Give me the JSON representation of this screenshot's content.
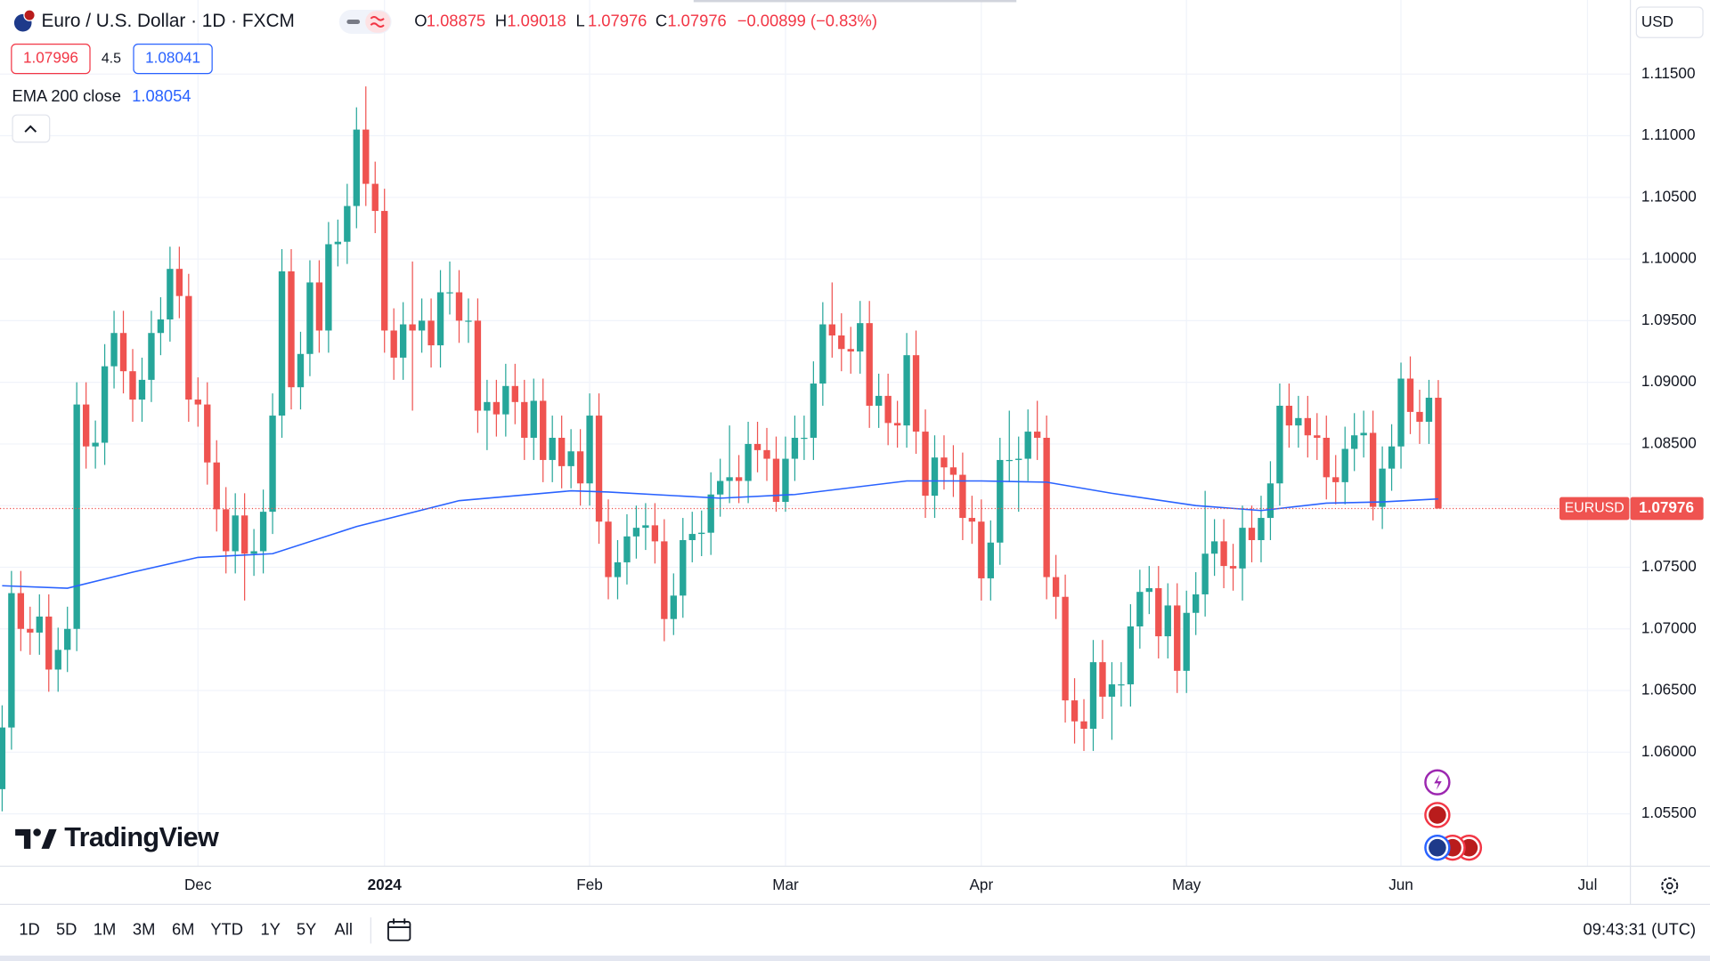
{
  "header": {
    "symbol": "Euro / U.S. Dollar · 1D · FXCM",
    "ohlc_labels": [
      "O",
      "H",
      "L",
      "C"
    ],
    "change": "−0.00899 (−0.83%)",
    "bid": 1.07996,
    "spread": 4.5,
    "ask": 1.08041,
    "currency": "USD",
    "symbol_tag": "EURUSD",
    "logo": "TradingView"
  },
  "toolbar": {
    "timeframes": [
      "1D",
      "5D",
      "1M",
      "3M",
      "6M",
      "YTD",
      "1Y",
      "5Y",
      "All"
    ],
    "clock": "09:43:31 (UTC)"
  },
  "chart_data": {
    "type": "candlestick",
    "up_color": "#26a69a",
    "down_color": "#ef5350",
    "grid": true,
    "xlim": [
      -0.23,
      174.6
    ],
    "xticks": [
      {
        "value": 21,
        "label": "Dec"
      },
      {
        "value": 41,
        "label": "2024"
      },
      {
        "value": 63,
        "label": "Feb"
      },
      {
        "value": 84,
        "label": "Mar"
      },
      {
        "value": 105,
        "label": "Apr"
      },
      {
        "value": 127,
        "label": "May"
      },
      {
        "value": 150,
        "label": "Jun"
      },
      {
        "value": 170,
        "label": "Jul"
      }
    ],
    "ylim": [
      1.05075,
      1.12101
    ],
    "yticks": [
      {
        "value": 1.055,
        "label": "1.05500"
      },
      {
        "value": 1.06,
        "label": "1.06000"
      },
      {
        "value": 1.065,
        "label": "1.06500"
      },
      {
        "value": 1.07,
        "label": "1.07000"
      },
      {
        "value": 1.075,
        "label": "1.07500"
      },
      {
        "value": 1.08,
        "label": "1.08000"
      },
      {
        "value": 1.085,
        "label": "1.08500"
      },
      {
        "value": 1.09,
        "label": "1.09000"
      },
      {
        "value": 1.095,
        "label": "1.09500"
      },
      {
        "value": 1.1,
        "label": "1.10000"
      },
      {
        "value": 1.105,
        "label": "1.10500"
      },
      {
        "value": 1.11,
        "label": "1.11000"
      },
      {
        "value": 1.115,
        "label": "1.11500"
      }
    ],
    "open": [
      1.057,
      1.062,
      1.0729,
      1.07,
      1.0697,
      1.071,
      1.0667,
      1.0683,
      1.07,
      1.0882,
      1.0848,
      1.0851,
      1.0913,
      1.094,
      1.0909,
      1.0886,
      1.0902,
      1.094,
      1.0951,
      1.0992,
      1.097,
      1.0886,
      1.0882,
      1.0835,
      1.0797,
      1.0763,
      1.0792,
      1.0761,
      1.0763,
      1.0795,
      1.0873,
      1.099,
      1.0896,
      1.0923,
      1.0981,
      1.0942,
      1.1012,
      1.1014,
      1.1043,
      1.1105,
      1.1061,
      1.1039,
      1.0942,
      1.092,
      1.0947,
      1.0942,
      1.095,
      1.093,
      1.0973,
      1.0973,
      1.095,
      1.095,
      1.0877,
      1.0884,
      1.0874,
      1.0897,
      1.0884,
      1.0855,
      1.0885,
      1.0837,
      1.0855,
      1.0832,
      1.0844,
      1.0818,
      1.0873,
      1.0787,
      1.0742,
      1.0754,
      1.0775,
      1.0782,
      1.0784,
      1.0771,
      1.0708,
      1.0727,
      1.0772,
      1.0777,
      1.0778,
      1.0809,
      1.082,
      1.0823,
      1.082,
      1.085,
      1.0845,
      1.0838,
      1.0803,
      1.0838,
      1.0855,
      1.0855,
      1.0899,
      1.0947,
      1.0938,
      1.0927,
      1.0925,
      1.0948,
      1.0881,
      1.0889,
      1.0867,
      1.0865,
      1.0922,
      1.086,
      1.0808,
      1.0839,
      1.0831,
      1.0825,
      1.079,
      1.0787,
      1.0741,
      1.077,
      1.0837,
      1.0837,
      1.0838,
      1.086,
      1.0855,
      1.0742,
      1.0726,
      1.0642,
      1.0625,
      1.0619,
      1.0673,
      1.0645,
      1.0655,
      1.0655,
      1.0702,
      1.073,
      1.0733,
      1.0694,
      1.0719,
      1.0666,
      1.0713,
      1.0728,
      1.0761,
      1.0771,
      1.0751,
      1.0749,
      1.0782,
      1.0772,
      1.079,
      1.0818,
      1.0881,
      1.0865,
      1.0871,
      1.0857,
      1.0855,
      1.0823,
      1.0819,
      1.0846,
      1.0857,
      1.0859,
      1.0799,
      1.083,
      1.0848,
      1.0903,
      1.0876,
      1.0868,
      1.08875
    ],
    "high": [
      1.0638,
      1.0747,
      1.0747,
      1.0718,
      1.0728,
      1.0728,
      1.0701,
      1.0718,
      1.09,
      1.09,
      1.0869,
      1.0931,
      1.0958,
      1.0958,
      1.0927,
      1.092,
      1.0958,
      1.0969,
      1.101,
      1.101,
      1.0988,
      1.0904,
      1.09,
      1.0853,
      1.0815,
      1.081,
      1.081,
      1.0781,
      1.0813,
      1.0891,
      1.1008,
      1.1008,
      1.0941,
      1.0999,
      1.0999,
      1.103,
      1.1032,
      1.1061,
      1.1123,
      1.114,
      1.1079,
      1.1057,
      1.096,
      1.0965,
      1.0998,
      1.0968,
      1.0968,
      1.0991,
      1.0998,
      1.0991,
      1.0968,
      1.0968,
      1.0902,
      1.0902,
      1.0915,
      1.0915,
      1.0902,
      1.0903,
      1.0903,
      1.0873,
      1.0873,
      1.0862,
      1.0862,
      1.0891,
      1.0891,
      1.0805,
      1.0772,
      1.0793,
      1.08,
      1.0802,
      1.0802,
      1.0789,
      1.0745,
      1.079,
      1.0795,
      1.0796,
      1.0827,
      1.0838,
      1.0865,
      1.0841,
      1.0868,
      1.0868,
      1.0863,
      1.0856,
      1.0856,
      1.0873,
      1.0873,
      1.0917,
      1.0965,
      1.0981,
      1.0956,
      1.0945,
      1.0966,
      1.0966,
      1.0907,
      1.0907,
      1.0885,
      1.094,
      1.0942,
      1.0878,
      1.0857,
      1.0857,
      1.0849,
      1.0843,
      1.0808,
      1.0805,
      1.0788,
      1.0855,
      1.0877,
      1.0856,
      1.0878,
      1.0885,
      1.0873,
      1.076,
      1.0744,
      1.066,
      1.0643,
      1.0691,
      1.0691,
      1.0673,
      1.0673,
      1.072,
      1.0748,
      1.0751,
      1.0751,
      1.0737,
      1.0737,
      1.0731,
      1.0746,
      1.0812,
      1.0789,
      1.0789,
      1.0769,
      1.08,
      1.08,
      1.0808,
      1.0836,
      1.0899,
      1.0899,
      1.0889,
      1.0889,
      1.0875,
      1.0873,
      1.0841,
      1.0864,
      1.0875,
      1.0877,
      1.0877,
      1.0848,
      1.0866,
      1.0916,
      1.0921,
      1.0894,
      1.0902,
      1.09018
    ],
    "low": [
      1.0552,
      1.0602,
      1.0682,
      1.0679,
      1.0679,
      1.0649,
      1.0649,
      1.0665,
      1.0682,
      1.083,
      1.083,
      1.0833,
      1.0895,
      1.0891,
      1.0868,
      1.0868,
      1.0884,
      1.0922,
      1.0933,
      1.0952,
      1.0868,
      1.0864,
      1.0817,
      1.0779,
      1.0745,
      1.0745,
      1.0723,
      1.0743,
      1.0745,
      1.0777,
      1.0855,
      1.0878,
      1.0878,
      1.0905,
      1.0924,
      1.0924,
      1.0994,
      1.0996,
      1.1025,
      1.1043,
      1.1021,
      1.0924,
      1.0902,
      1.0902,
      1.0877,
      1.0924,
      1.0912,
      1.0912,
      1.0955,
      1.0932,
      1.0932,
      1.0859,
      1.0845,
      1.0856,
      1.0856,
      1.0866,
      1.0837,
      1.0837,
      1.0819,
      1.0819,
      1.0814,
      1.0814,
      1.08,
      1.08,
      1.0769,
      1.0724,
      1.0724,
      1.0736,
      1.0757,
      1.0764,
      1.0753,
      1.069,
      1.0695,
      1.0709,
      1.0754,
      1.0759,
      1.076,
      1.0791,
      1.0802,
      1.0802,
      1.0802,
      1.0827,
      1.082,
      1.0795,
      1.0795,
      1.082,
      1.0837,
      1.0837,
      1.0881,
      1.092,
      1.0909,
      1.0907,
      1.0907,
      1.0863,
      1.0863,
      1.0849,
      1.0847,
      1.0847,
      1.0842,
      1.079,
      1.079,
      1.0813,
      1.0807,
      1.0772,
      1.0769,
      1.0723,
      1.0723,
      1.0752,
      1.0819,
      1.0795,
      1.082,
      1.0837,
      1.0724,
      1.0708,
      1.0624,
      1.0607,
      1.0601,
      1.0601,
      1.0627,
      1.061,
      1.0637,
      1.0637,
      1.0684,
      1.0712,
      1.0676,
      1.0676,
      1.0648,
      1.0648,
      1.0695,
      1.071,
      1.0743,
      1.0733,
      1.0731,
      1.0723,
      1.0754,
      1.0754,
      1.0772,
      1.08,
      1.0847,
      1.0847,
      1.0839,
      1.0837,
      1.0805,
      1.0801,
      1.0801,
      1.0828,
      1.0839,
      1.0788,
      1.0781,
      1.0812,
      1.083,
      1.0858,
      1.085,
      1.085,
      1.07976
    ],
    "close": [
      1.062,
      1.0729,
      1.07,
      1.0697,
      1.071,
      1.0667,
      1.0683,
      1.07,
      1.0882,
      1.0848,
      1.0851,
      1.0913,
      1.094,
      1.0909,
      1.0886,
      1.0902,
      1.094,
      1.0951,
      1.0992,
      1.097,
      1.0886,
      1.0882,
      1.0835,
      1.0797,
      1.0763,
      1.0792,
      1.0761,
      1.0763,
      1.0795,
      1.0873,
      1.099,
      1.0896,
      1.0923,
      1.0981,
      1.0942,
      1.1012,
      1.1014,
      1.1043,
      1.1105,
      1.1061,
      1.1039,
      1.0942,
      1.092,
      1.0947,
      1.0942,
      1.095,
      1.093,
      1.0973,
      1.0973,
      1.095,
      1.095,
      1.0877,
      1.0884,
      1.0874,
      1.0897,
      1.0884,
      1.0855,
      1.0885,
      1.0837,
      1.0855,
      1.0832,
      1.0844,
      1.0818,
      1.0873,
      1.0787,
      1.0742,
      1.0754,
      1.0775,
      1.0782,
      1.0784,
      1.0771,
      1.0708,
      1.0727,
      1.0772,
      1.0777,
      1.0778,
      1.0809,
      1.082,
      1.0823,
      1.082,
      1.085,
      1.0845,
      1.0838,
      1.0803,
      1.0838,
      1.0855,
      1.0855,
      1.0899,
      1.0947,
      1.0938,
      1.0927,
      1.0925,
      1.0948,
      1.0881,
      1.0889,
      1.0867,
      1.0865,
      1.0922,
      1.086,
      1.0808,
      1.0839,
      1.0831,
      1.0825,
      1.079,
      1.0787,
      1.0741,
      1.077,
      1.0837,
      1.0837,
      1.0838,
      1.086,
      1.0855,
      1.0742,
      1.0726,
      1.0642,
      1.0625,
      1.0619,
      1.0673,
      1.0645,
      1.0655,
      1.0655,
      1.0702,
      1.073,
      1.0733,
      1.0694,
      1.0719,
      1.0666,
      1.0713,
      1.0728,
      1.0761,
      1.0771,
      1.0751,
      1.0749,
      1.0782,
      1.0772,
      1.079,
      1.0818,
      1.0881,
      1.0865,
      1.0871,
      1.0857,
      1.0855,
      1.0823,
      1.0819,
      1.0846,
      1.0857,
      1.0859,
      1.0799,
      1.083,
      1.0848,
      1.0903,
      1.0876,
      1.0868,
      1.08875,
      1.07976
    ],
    "ema": {
      "name": "EMA 200 close",
      "color": "#2962ff",
      "x": [
        0,
        7,
        14,
        21,
        29,
        38,
        49,
        61,
        65,
        77,
        85,
        97,
        105,
        112,
        119,
        128,
        135,
        142,
        148,
        154
      ],
      "values": [
        1.0735,
        1.0733,
        1.0746,
        1.0758,
        1.0761,
        1.0783,
        1.0804,
        1.0812,
        1.0811,
        1.0806,
        1.0809,
        1.082,
        1.082,
        1.0819,
        1.081,
        1.08,
        1.0796,
        1.0802,
        1.0803,
        1.08054
      ]
    }
  }
}
